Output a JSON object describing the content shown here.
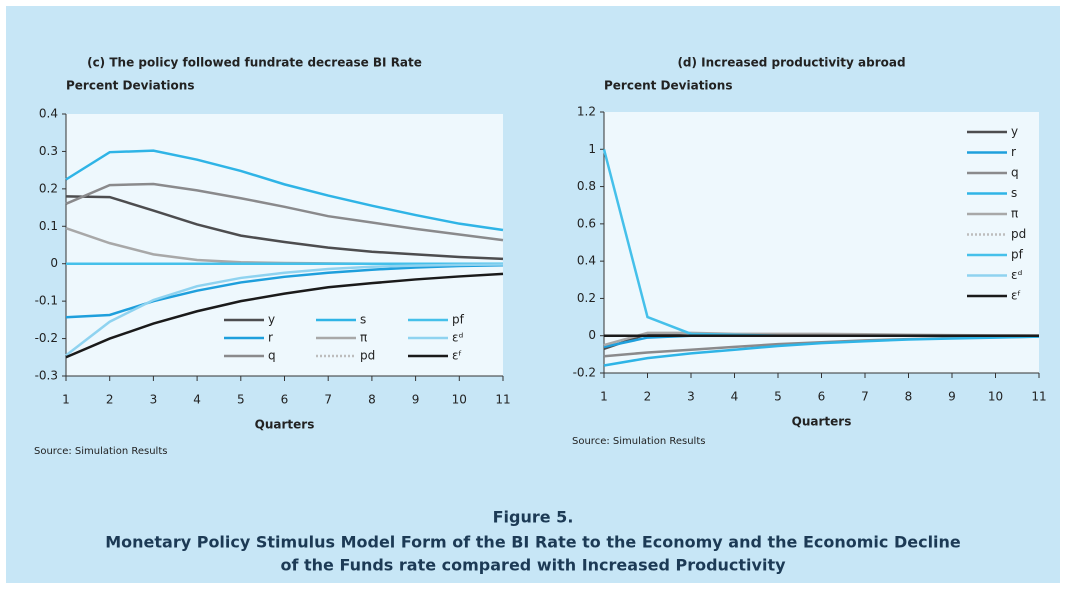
{
  "chart_data": [
    {
      "type": "line",
      "title": "(c) The policy followed fundrate decrease BI Rate",
      "y_label": "Percent Deviations",
      "x_label": "Quarters",
      "source": "Source: Simulation Results",
      "x": [
        1,
        2,
        3,
        4,
        5,
        6,
        7,
        8,
        9,
        10,
        11
      ],
      "xlim": [
        1,
        11
      ],
      "xticks": [
        1,
        2,
        3,
        4,
        5,
        6,
        7,
        8,
        9,
        10,
        11
      ],
      "ylim": [
        -0.3,
        0.4
      ],
      "yticks": [
        0.4,
        0.3,
        0.2,
        0.1,
        0,
        -0.1,
        -0.2,
        -0.3
      ],
      "legend": "lower center",
      "series": [
        {
          "name": "y",
          "color": "#4d4d4f",
          "values": [
            0.18,
            0.178,
            0.142,
            0.105,
            0.075,
            0.058,
            0.043,
            0.032,
            0.025,
            0.018,
            0.013
          ]
        },
        {
          "name": "r",
          "color": "#1e9fdc",
          "values": [
            -0.143,
            -0.137,
            -0.1,
            -0.072,
            -0.05,
            -0.035,
            -0.024,
            -0.016,
            -0.01,
            -0.006,
            -0.004
          ]
        },
        {
          "name": "q",
          "color": "#8a8a8c",
          "values": [
            0.16,
            0.21,
            0.213,
            0.196,
            0.175,
            0.152,
            0.127,
            0.11,
            0.093,
            0.078,
            0.063
          ]
        },
        {
          "name": "s",
          "color": "#2fb4e6",
          "values": [
            0.225,
            0.298,
            0.302,
            0.278,
            0.248,
            0.212,
            0.182,
            0.155,
            0.13,
            0.107,
            0.09
          ]
        },
        {
          "name": "π",
          "color": "#a8a8a8",
          "values": [
            0.095,
            0.055,
            0.025,
            0.01,
            0.004,
            0.002,
            0.001,
            0,
            0,
            0,
            0
          ]
        },
        {
          "name": "pd",
          "color": "#bdbdbd",
          "style": "dotted",
          "values": [
            0,
            0,
            0,
            0,
            0,
            0,
            0,
            0,
            0,
            0,
            0
          ]
        },
        {
          "name": "pf",
          "color": "#45c0ea",
          "values": [
            0,
            0,
            0,
            0,
            0,
            0,
            0,
            0,
            0,
            0,
            0
          ]
        },
        {
          "name": "εᵈ",
          "color": "#8fd3f0",
          "values": [
            -0.245,
            -0.155,
            -0.097,
            -0.06,
            -0.038,
            -0.024,
            -0.014,
            -0.008,
            -0.005,
            -0.003,
            -0.002
          ]
        },
        {
          "name": "εᶠ",
          "color": "#1a1a1a",
          "values": [
            -0.25,
            -0.2,
            -0.16,
            -0.127,
            -0.1,
            -0.08,
            -0.063,
            -0.052,
            -0.042,
            -0.034,
            -0.027
          ]
        }
      ]
    },
    {
      "type": "line",
      "title": "(d) Increased productivity abroad",
      "y_label": "Percent Deviations",
      "x_label": "Quarters",
      "source": "Source: Simulation Results",
      "x": [
        1,
        2,
        3,
        4,
        5,
        6,
        7,
        8,
        9,
        10,
        11
      ],
      "xlim": [
        1,
        11
      ],
      "xticks": [
        1,
        2,
        3,
        4,
        5,
        6,
        7,
        8,
        9,
        10,
        11
      ],
      "ylim": [
        -0.2,
        1.2
      ],
      "yticks": [
        1.2,
        1,
        0.8,
        0.6,
        0.4,
        0.2,
        0,
        -0.2
      ],
      "legend": "upper right",
      "series": [
        {
          "name": "y",
          "color": "#4d4d4f",
          "values": [
            -0.07,
            0.01,
            0,
            0,
            0,
            0,
            0,
            0,
            0,
            0,
            0
          ]
        },
        {
          "name": "r",
          "color": "#1e9fdc",
          "values": [
            -0.06,
            -0.01,
            0,
            0,
            0,
            0,
            0,
            0,
            0,
            0,
            0
          ]
        },
        {
          "name": "q",
          "color": "#8a8a8c",
          "values": [
            -0.11,
            -0.09,
            -0.075,
            -0.06,
            -0.045,
            -0.035,
            -0.025,
            -0.018,
            -0.012,
            -0.008,
            -0.005
          ]
        },
        {
          "name": "s",
          "color": "#2fb4e6",
          "values": [
            -0.16,
            -0.12,
            -0.095,
            -0.075,
            -0.055,
            -0.04,
            -0.03,
            -0.02,
            -0.015,
            -0.01,
            -0.005
          ]
        },
        {
          "name": "π",
          "color": "#a8a8a8",
          "values": [
            -0.05,
            0.015,
            0.015,
            0.01,
            0.01,
            0.01,
            0.008,
            0.005,
            0.003,
            0.002,
            0.001
          ]
        },
        {
          "name": "pd",
          "color": "#bdbdbd",
          "style": "dotted",
          "values": [
            0,
            0,
            0,
            0,
            0,
            0,
            0,
            0,
            0,
            0,
            0
          ]
        },
        {
          "name": "pf",
          "color": "#45c0ea",
          "values": [
            1,
            0.1,
            0.01,
            0.005,
            0,
            0,
            0,
            0,
            0,
            0,
            0
          ]
        },
        {
          "name": "εᵈ",
          "color": "#8fd3f0",
          "values": [
            0,
            0,
            0,
            0,
            0,
            0,
            0,
            0,
            0,
            0,
            0
          ]
        },
        {
          "name": "εᶠ",
          "color": "#1a1a1a",
          "values": [
            0,
            0,
            0,
            0,
            0,
            0,
            0,
            0,
            0,
            0,
            0
          ]
        }
      ]
    }
  ],
  "figure": {
    "label": "Figure 5.",
    "caption_lines": [
      "Monetary Policy Stimulus Model Form of the BI Rate to the Economy and the Economic Decline",
      "of the Funds rate compared with Increased Productivity"
    ]
  }
}
